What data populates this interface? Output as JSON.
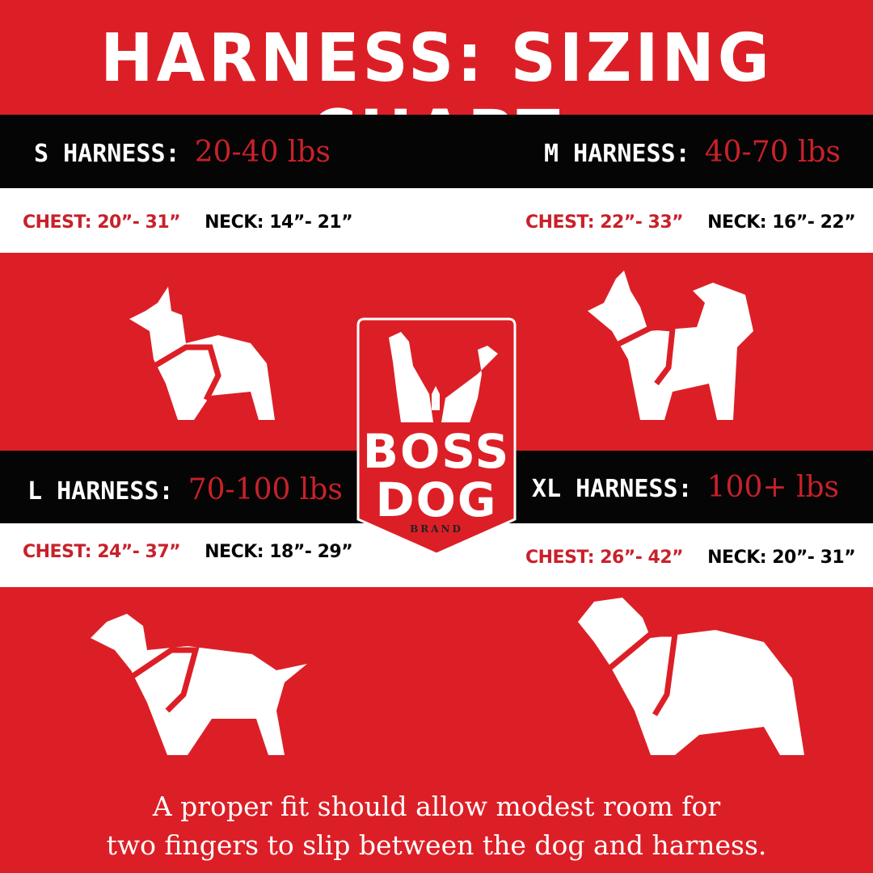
{
  "title": "HARNESS: SIZING CHART",
  "colors": {
    "red": "#dc1f26",
    "black": "#050505",
    "white": "#ffffff",
    "accent_text": "#c9212b"
  },
  "sizes": [
    {
      "label": "S HARNESS:",
      "weight": "20-40 lbs",
      "chest": "CHEST: 20”- 31”",
      "neck": "NECK: 14”- 21”",
      "icon": "corgi-with-harness-icon"
    },
    {
      "label": "M HARNESS:",
      "weight": "40-70 lbs",
      "chest": "CHEST: 22”- 33”",
      "neck": "NECK: 16”- 22”",
      "icon": "husky-with-harness-icon"
    },
    {
      "label": "L HARNESS:",
      "weight": "70-100 lbs",
      "chest": "CHEST: 24”- 37”",
      "neck": "NECK: 18”- 29”",
      "icon": "retriever-with-harness-icon"
    },
    {
      "label": "XL HARNESS:",
      "weight": "100+ lbs",
      "chest": "CHEST: 26”- 42”",
      "neck": "NECK: 20”- 31”",
      "icon": "newfoundland-with-harness-icon"
    }
  ],
  "logo": {
    "line1": "BOSS",
    "line2": "DOG",
    "sub": "BRAND",
    "mark": "®"
  },
  "footer": {
    "line1": "A proper fit should allow modest room for",
    "line2": "two fingers to slip between the dog and harness."
  }
}
